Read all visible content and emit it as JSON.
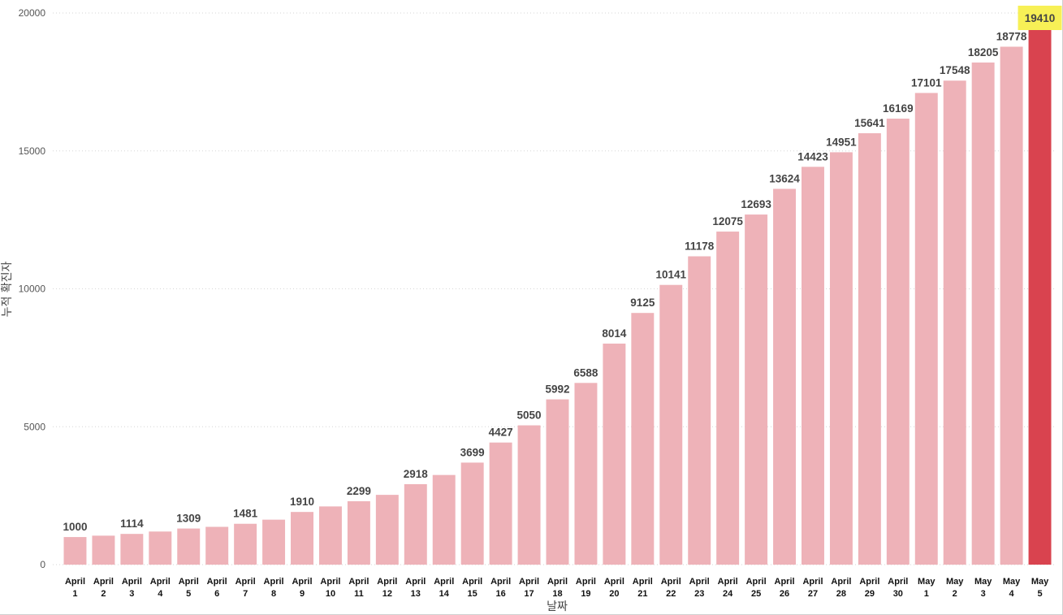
{
  "chart_data": {
    "type": "bar",
    "title": "",
    "xlabel": "날짜",
    "ylabel": "누적 확진자",
    "ylim": [
      0,
      20000
    ],
    "yticks": [
      0,
      5000,
      10000,
      15000,
      20000
    ],
    "grid": true,
    "categories": [
      [
        "April",
        "1"
      ],
      [
        "April",
        "2"
      ],
      [
        "April",
        "3"
      ],
      [
        "April",
        "4"
      ],
      [
        "April",
        "5"
      ],
      [
        "April",
        "6"
      ],
      [
        "April",
        "7"
      ],
      [
        "April",
        "8"
      ],
      [
        "April",
        "9"
      ],
      [
        "April",
        "10"
      ],
      [
        "April",
        "11"
      ],
      [
        "April",
        "12"
      ],
      [
        "April",
        "13"
      ],
      [
        "April",
        "14"
      ],
      [
        "April",
        "15"
      ],
      [
        "April",
        "16"
      ],
      [
        "April",
        "17"
      ],
      [
        "April",
        "18"
      ],
      [
        "April",
        "19"
      ],
      [
        "April",
        "20"
      ],
      [
        "April",
        "21"
      ],
      [
        "April",
        "22"
      ],
      [
        "April",
        "23"
      ],
      [
        "April",
        "24"
      ],
      [
        "April",
        "25"
      ],
      [
        "April",
        "26"
      ],
      [
        "April",
        "27"
      ],
      [
        "April",
        "28"
      ],
      [
        "April",
        "29"
      ],
      [
        "April",
        "30"
      ],
      [
        "May",
        "1"
      ],
      [
        "May",
        "2"
      ],
      [
        "May",
        "3"
      ],
      [
        "May",
        "4"
      ],
      [
        "May",
        "5"
      ]
    ],
    "values": [
      1000,
      1050,
      1114,
      1200,
      1309,
      1370,
      1481,
      1630,
      1910,
      2110,
      2299,
      2530,
      2918,
      3250,
      3699,
      4427,
      5050,
      5992,
      6588,
      8014,
      9125,
      10141,
      11178,
      12075,
      12693,
      13624,
      14423,
      14951,
      15641,
      16169,
      17101,
      17548,
      18205,
      18778,
      19410
    ],
    "data_labels": [
      "1000",
      "",
      "1114",
      "",
      "1309",
      "",
      "1481",
      "",
      "1910",
      "",
      "2299",
      "",
      "2918",
      "",
      "3699",
      "4427",
      "5050",
      "5992",
      "6588",
      "8014",
      "9125",
      "10141",
      "11178",
      "12075",
      "12693",
      "13624",
      "14423",
      "14951",
      "15641",
      "16169",
      "17101",
      "17548",
      "18205",
      "18778",
      "19410"
    ],
    "highlight_index": 34,
    "colors": {
      "bar": "#eeb2b8",
      "bar_highlight": "#d9434f",
      "label_highlight_bg": "#f7f056",
      "grid": "#d6d6d6"
    }
  }
}
